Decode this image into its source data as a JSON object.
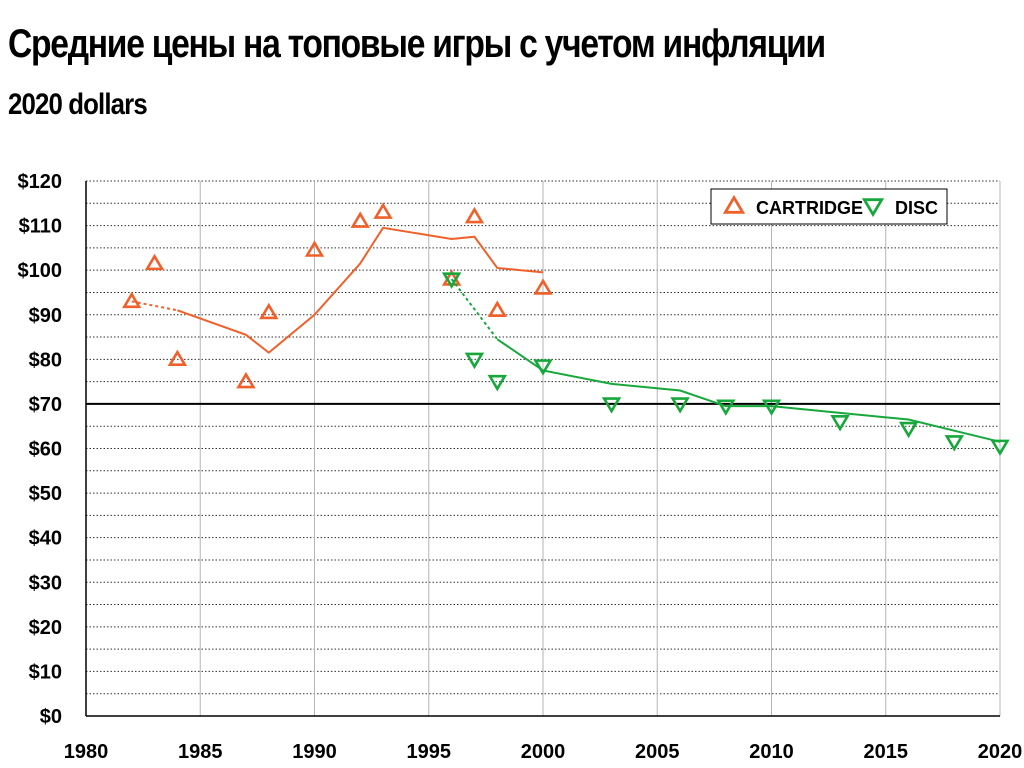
{
  "header": {
    "title": "Средние цены на топовые игры с учетом инфляции",
    "subtitle": "2020 dollars"
  },
  "chart_data": {
    "type": "scatter",
    "title": "Средние цены на топовые игры с учетом инфляции",
    "subtitle": "2020 dollars",
    "xlabel": "",
    "ylabel": "",
    "xlim": [
      1980,
      2020
    ],
    "ylim": [
      0,
      120
    ],
    "x_ticks": [
      1980,
      1985,
      1990,
      1995,
      2000,
      2005,
      2010,
      2015,
      2020
    ],
    "y_ticks": [
      0,
      10,
      20,
      30,
      40,
      50,
      60,
      70,
      80,
      90,
      100,
      110,
      120
    ],
    "y_tick_labels": [
      "$0",
      "$10",
      "$20",
      "$30",
      "$40",
      "$50",
      "$60",
      "$70",
      "$80",
      "$90",
      "$100",
      "$110",
      "$120"
    ],
    "x_tick_labels": [
      "1980",
      "1985",
      "1990",
      "1995",
      "2000",
      "2005",
      "2010",
      "2015",
      "2020"
    ],
    "grid": true,
    "reference_line": 70,
    "legend_position": "top-right",
    "series": [
      {
        "name": "CARTRIDGE",
        "marker": "triangle-up",
        "color": "#f0602a",
        "points": [
          {
            "x": 1982,
            "y": 93
          },
          {
            "x": 1983,
            "y": 101.5
          },
          {
            "x": 1984,
            "y": 80
          },
          {
            "x": 1987,
            "y": 75
          },
          {
            "x": 1988,
            "y": 90.5
          },
          {
            "x": 1990,
            "y": 104.5
          },
          {
            "x": 1992,
            "y": 111
          },
          {
            "x": 1993,
            "y": 113
          },
          {
            "x": 1996,
            "y": 98
          },
          {
            "x": 1997,
            "y": 112
          },
          {
            "x": 1998,
            "y": 91
          },
          {
            "x": 2000,
            "y": 96
          }
        ],
        "trend_dashed": [
          [
            1982,
            93
          ],
          [
            1984,
            91
          ]
        ],
        "trend": [
          [
            1984,
            91
          ],
          [
            1987,
            85.5
          ],
          [
            1988,
            81.5
          ],
          [
            1990,
            90
          ],
          [
            1992,
            101.5
          ],
          [
            1993,
            109.5
          ],
          [
            1996,
            107
          ],
          [
            1997,
            107.5
          ],
          [
            1998,
            100.5
          ],
          [
            2000,
            99.5
          ]
        ]
      },
      {
        "name": "DISC",
        "marker": "triangle-down",
        "color": "#17a83c",
        "points": [
          {
            "x": 1996,
            "y": 98
          },
          {
            "x": 1997,
            "y": 80
          },
          {
            "x": 1998,
            "y": 75
          },
          {
            "x": 2000,
            "y": 78.5
          },
          {
            "x": 2003,
            "y": 70
          },
          {
            "x": 2006,
            "y": 70
          },
          {
            "x": 2008,
            "y": 69.5
          },
          {
            "x": 2010,
            "y": 69.5
          },
          {
            "x": 2013,
            "y": 66
          },
          {
            "x": 2016,
            "y": 64.5
          },
          {
            "x": 2018,
            "y": 61.5
          },
          {
            "x": 2020,
            "y": 60.5
          }
        ],
        "trend_dashed": [
          [
            1996,
            98
          ],
          [
            1998,
            84.5
          ]
        ],
        "trend": [
          [
            1998,
            84.5
          ],
          [
            2000,
            77.5
          ],
          [
            2003,
            74.5
          ],
          [
            2006,
            73
          ],
          [
            2008,
            69.5
          ],
          [
            2010,
            69.5
          ],
          [
            2013,
            68
          ],
          [
            2016,
            66.5
          ],
          [
            2018,
            64
          ],
          [
            2020,
            61.5
          ]
        ]
      }
    ]
  }
}
